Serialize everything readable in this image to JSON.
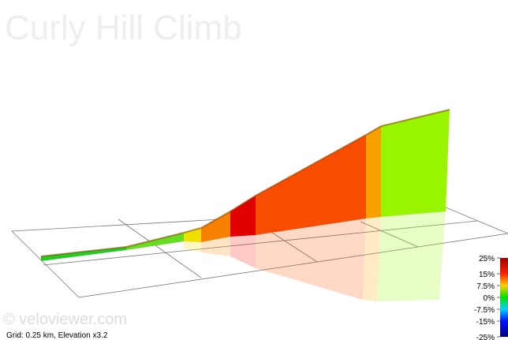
{
  "title": "Curly Hill Climb",
  "watermark": "© veloviewer.com",
  "footer": "Grid: 0.25 km, Elevation x3.2",
  "color_scale": {
    "lim": [
      -25,
      25
    ],
    "ticks": [
      {
        "value": 25,
        "label": "25%"
      },
      {
        "value": 15,
        "label": "15%"
      },
      {
        "value": 7.5,
        "label": "7.5%"
      },
      {
        "value": 0,
        "label": "0%"
      },
      {
        "value": -7.5,
        "label": "-7.5%"
      },
      {
        "value": -15,
        "label": "-15%"
      },
      {
        "value": -25,
        "label": "-25%"
      }
    ]
  }
}
